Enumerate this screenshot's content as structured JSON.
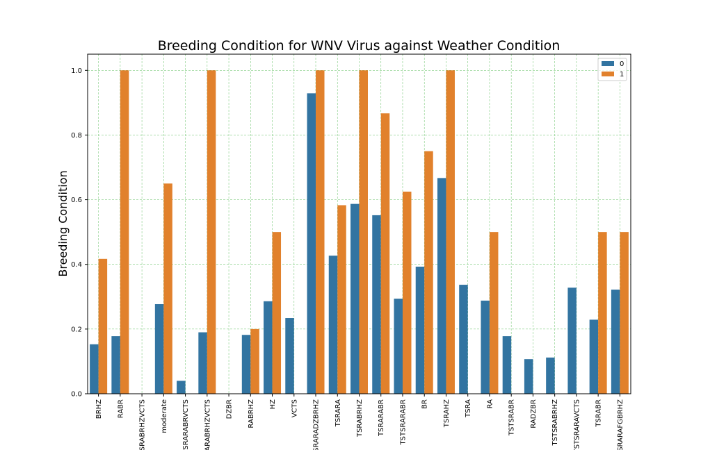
{
  "chart_data": {
    "type": "bar",
    "title": "Breeding Condition for WNV Virus against Weather Condition",
    "xlabel": "",
    "ylabel": "Breeding Condition",
    "ylim": [
      0,
      1.05
    ],
    "yticks": [
      "0.0",
      "0.2",
      "0.4",
      "0.6",
      "0.8",
      "1.0"
    ],
    "grid": true,
    "legend_position": "top-right",
    "categories": [
      "BRHZ",
      "RABR",
      "SRABRHZVCTS",
      "moderate",
      "TSRARABRVCTS",
      "ARABRHZVCTS",
      "DZBR",
      "RABRHZ",
      "HZ",
      "VCTS",
      "SRARADZBRHZ",
      "TSRARA",
      "TSRABRHZ",
      "TSRARABR",
      "TSTSRARABR",
      "BR",
      "TSRAHZ",
      "TSRA",
      "RA",
      "TSTSRABR",
      "RADZBR",
      "TSTSRABRHZ",
      "TSTSRARAVCTS",
      "TSRABR",
      "SRARAFGBRHZ"
    ],
    "series": [
      {
        "name": "0",
        "color": "#3274a1",
        "values": [
          0.153,
          0.178,
          0,
          0.277,
          0.04,
          0.19,
          0,
          0.182,
          0.286,
          0.234,
          0.929,
          0.427,
          0.587,
          0.552,
          0.294,
          0.393,
          0.667,
          0.337,
          0.288,
          0.178,
          0.107,
          0.112,
          0.328,
          0.229,
          0.322
        ]
      },
      {
        "name": "1",
        "color": "#e1812c",
        "values": [
          0.417,
          1.0,
          0,
          0.65,
          0,
          1.0,
          0,
          0.2,
          0.5,
          0,
          1.0,
          0.583,
          1.0,
          0.867,
          0.625,
          0.75,
          1.0,
          0,
          0.5,
          0,
          0,
          0,
          0,
          0.5,
          0.5
        ]
      }
    ]
  }
}
